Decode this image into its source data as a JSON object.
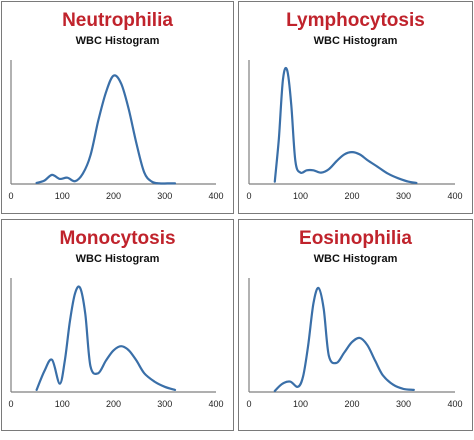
{
  "chart_data": [
    {
      "type": "line",
      "title": "Neutrophilia",
      "subtitle": "WBC Histogram",
      "xlim": [
        0,
        400
      ],
      "x_ticks": [
        0,
        100,
        200,
        300,
        400
      ],
      "x": [
        50,
        65,
        80,
        95,
        110,
        125,
        140,
        155,
        170,
        185,
        200,
        215,
        230,
        245,
        260,
        275,
        290,
        305,
        320
      ],
      "y": [
        1.0,
        3.0,
        8.0,
        4.5,
        5.5,
        2.5,
        9.0,
        25.0,
        55.0,
        80.0,
        95.0,
        88.0,
        65.0,
        35.0,
        10.0,
        2.0,
        0.5,
        0.5,
        0.5
      ],
      "ylim": [
        0,
        100
      ],
      "color": "#3a6fa8"
    },
    {
      "type": "line",
      "title": "Lymphocytosis",
      "subtitle": "WBC Histogram",
      "xlim": [
        0,
        400
      ],
      "x_ticks": [
        0,
        100,
        200,
        300,
        400
      ],
      "x": [
        50,
        58,
        66,
        74,
        82,
        90,
        100,
        112,
        125,
        140,
        155,
        170,
        185,
        200,
        215,
        230,
        250,
        270,
        290,
        310,
        325
      ],
      "y": [
        2.0,
        40.0,
        92.0,
        100.0,
        70.0,
        20.0,
        10.0,
        12.0,
        12.0,
        10.0,
        13.0,
        20.0,
        26.0,
        28.0,
        26.0,
        21.0,
        15.0,
        9.0,
        5.0,
        2.0,
        1.0
      ],
      "ylim": [
        0,
        100
      ],
      "color": "#3a6fa8"
    },
    {
      "type": "line",
      "title": "Monocytosis",
      "subtitle": "WBC Histogram",
      "xlim": [
        0,
        400
      ],
      "x_ticks": [
        0,
        100,
        200,
        300,
        400
      ],
      "x": [
        50,
        65,
        80,
        95,
        105,
        115,
        125,
        135,
        145,
        155,
        170,
        185,
        200,
        215,
        230,
        245,
        260,
        280,
        300,
        320
      ],
      "y": [
        2.0,
        20.0,
        31.0,
        8.0,
        30.0,
        68.0,
        95.0,
        100.0,
        75.0,
        25.0,
        18.0,
        30.0,
        40.0,
        44.0,
        40.0,
        30.0,
        18.0,
        10.0,
        5.0,
        2.0
      ],
      "ylim": [
        0,
        100
      ],
      "color": "#3a6fa8"
    },
    {
      "type": "line",
      "title": "Eosinophilia",
      "subtitle": "WBC Histogram",
      "xlim": [
        0,
        400
      ],
      "x_ticks": [
        0,
        100,
        200,
        300,
        400
      ],
      "x": [
        50,
        65,
        80,
        95,
        105,
        115,
        125,
        135,
        145,
        155,
        170,
        185,
        200,
        215,
        230,
        245,
        260,
        280,
        300,
        320
      ],
      "y": [
        1.0,
        8.0,
        10.0,
        5.0,
        15.0,
        45.0,
        85.0,
        100.0,
        80.0,
        35.0,
        28.0,
        38.0,
        48.0,
        52.0,
        45.0,
        30.0,
        16.0,
        7.0,
        3.0,
        2.0
      ],
      "ylim": [
        0,
        100
      ],
      "color": "#3a6fa8"
    }
  ]
}
